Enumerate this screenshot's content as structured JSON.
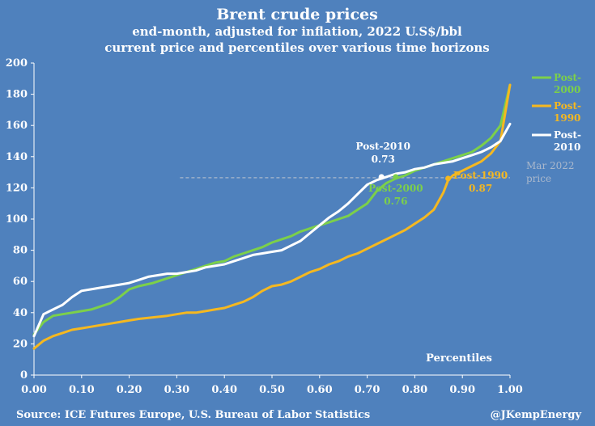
{
  "chart_data": {
    "type": "line",
    "title": "Brent crude prices",
    "subtitle_lines": [
      "end-month, adjusted for inflation, 2022 U.S$/bbl",
      "current price and percentiles over various time horizons"
    ],
    "xlabel": "Percentiles",
    "ylabel": "",
    "xlim": [
      0,
      1
    ],
    "ylim": [
      0,
      200
    ],
    "x_ticks": [
      "0.00",
      "0.10",
      "0.20",
      "0.30",
      "0.40",
      "0.50",
      "0.60",
      "0.70",
      "0.80",
      "0.90",
      "1.00"
    ],
    "y_ticks": [
      "0",
      "20",
      "40",
      "60",
      "80",
      "100",
      "120",
      "140",
      "160",
      "180",
      "200"
    ],
    "grid": false,
    "legend_position": "right",
    "series": [
      {
        "name_lines": [
          "Post-",
          "2000"
        ],
        "color": "#7cd04a",
        "points": [
          [
            0.0,
            26
          ],
          [
            0.02,
            34
          ],
          [
            0.04,
            38
          ],
          [
            0.06,
            39
          ],
          [
            0.08,
            40
          ],
          [
            0.1,
            41
          ],
          [
            0.12,
            42
          ],
          [
            0.14,
            44
          ],
          [
            0.16,
            46
          ],
          [
            0.18,
            50
          ],
          [
            0.2,
            55
          ],
          [
            0.22,
            57
          ],
          [
            0.25,
            59
          ],
          [
            0.28,
            62
          ],
          [
            0.3,
            64
          ],
          [
            0.32,
            66
          ],
          [
            0.34,
            68
          ],
          [
            0.36,
            70
          ],
          [
            0.38,
            72
          ],
          [
            0.4,
            73
          ],
          [
            0.42,
            76
          ],
          [
            0.44,
            78
          ],
          [
            0.46,
            80
          ],
          [
            0.48,
            82
          ],
          [
            0.5,
            85
          ],
          [
            0.52,
            87
          ],
          [
            0.54,
            89
          ],
          [
            0.56,
            92
          ],
          [
            0.58,
            94
          ],
          [
            0.6,
            96
          ],
          [
            0.62,
            98
          ],
          [
            0.64,
            100
          ],
          [
            0.66,
            102
          ],
          [
            0.68,
            106
          ],
          [
            0.7,
            110
          ],
          [
            0.72,
            118
          ],
          [
            0.74,
            123
          ],
          [
            0.76,
            126
          ],
          [
            0.78,
            128
          ],
          [
            0.8,
            131
          ],
          [
            0.82,
            133
          ],
          [
            0.84,
            135
          ],
          [
            0.86,
            137
          ],
          [
            0.88,
            139
          ],
          [
            0.9,
            141
          ],
          [
            0.92,
            143
          ],
          [
            0.94,
            147
          ],
          [
            0.96,
            152
          ],
          [
            0.98,
            160
          ],
          [
            1.0,
            186
          ]
        ]
      },
      {
        "name_lines": [
          "Post-",
          "1990"
        ],
        "color": "#f5b820",
        "points": [
          [
            0.0,
            17
          ],
          [
            0.02,
            22
          ],
          [
            0.04,
            25
          ],
          [
            0.06,
            27
          ],
          [
            0.08,
            29
          ],
          [
            0.1,
            30
          ],
          [
            0.12,
            31
          ],
          [
            0.14,
            32
          ],
          [
            0.16,
            33
          ],
          [
            0.18,
            34
          ],
          [
            0.2,
            35
          ],
          [
            0.22,
            36
          ],
          [
            0.25,
            37
          ],
          [
            0.28,
            38
          ],
          [
            0.3,
            39
          ],
          [
            0.32,
            40
          ],
          [
            0.34,
            40
          ],
          [
            0.36,
            41
          ],
          [
            0.38,
            42
          ],
          [
            0.4,
            43
          ],
          [
            0.42,
            45
          ],
          [
            0.44,
            47
          ],
          [
            0.46,
            50
          ],
          [
            0.48,
            54
          ],
          [
            0.5,
            57
          ],
          [
            0.52,
            58
          ],
          [
            0.54,
            60
          ],
          [
            0.56,
            63
          ],
          [
            0.58,
            66
          ],
          [
            0.6,
            68
          ],
          [
            0.62,
            71
          ],
          [
            0.64,
            73
          ],
          [
            0.66,
            76
          ],
          [
            0.68,
            78
          ],
          [
            0.7,
            81
          ],
          [
            0.72,
            84
          ],
          [
            0.74,
            87
          ],
          [
            0.76,
            90
          ],
          [
            0.78,
            93
          ],
          [
            0.8,
            97
          ],
          [
            0.82,
            101
          ],
          [
            0.84,
            106
          ],
          [
            0.86,
            117
          ],
          [
            0.87,
            125
          ],
          [
            0.88,
            128
          ],
          [
            0.9,
            131
          ],
          [
            0.92,
            134
          ],
          [
            0.94,
            137
          ],
          [
            0.96,
            142
          ],
          [
            0.98,
            150
          ],
          [
            1.0,
            186
          ]
        ]
      },
      {
        "name_lines": [
          "Post-",
          "2010"
        ],
        "color": "#ffffff",
        "points": [
          [
            0.0,
            25
          ],
          [
            0.02,
            39
          ],
          [
            0.04,
            42
          ],
          [
            0.06,
            45
          ],
          [
            0.08,
            50
          ],
          [
            0.1,
            54
          ],
          [
            0.12,
            55
          ],
          [
            0.14,
            56
          ],
          [
            0.16,
            57
          ],
          [
            0.18,
            58
          ],
          [
            0.2,
            59
          ],
          [
            0.22,
            61
          ],
          [
            0.24,
            63
          ],
          [
            0.26,
            64
          ],
          [
            0.28,
            65
          ],
          [
            0.3,
            65
          ],
          [
            0.32,
            66
          ],
          [
            0.34,
            67
          ],
          [
            0.36,
            69
          ],
          [
            0.38,
            70
          ],
          [
            0.4,
            71
          ],
          [
            0.42,
            73
          ],
          [
            0.44,
            75
          ],
          [
            0.46,
            77
          ],
          [
            0.48,
            78
          ],
          [
            0.5,
            79
          ],
          [
            0.52,
            80
          ],
          [
            0.54,
            83
          ],
          [
            0.56,
            86
          ],
          [
            0.58,
            91
          ],
          [
            0.6,
            96
          ],
          [
            0.62,
            101
          ],
          [
            0.64,
            105
          ],
          [
            0.66,
            110
          ],
          [
            0.68,
            116
          ],
          [
            0.7,
            122
          ],
          [
            0.72,
            125
          ],
          [
            0.74,
            127
          ],
          [
            0.76,
            129
          ],
          [
            0.78,
            130
          ],
          [
            0.8,
            132
          ],
          [
            0.82,
            133
          ],
          [
            0.84,
            135
          ],
          [
            0.86,
            136
          ],
          [
            0.88,
            137
          ],
          [
            0.9,
            139
          ],
          [
            0.92,
            141
          ],
          [
            0.94,
            143
          ],
          [
            0.96,
            146
          ],
          [
            0.98,
            150
          ],
          [
            1.0,
            161
          ]
        ]
      }
    ],
    "reference_line": {
      "value": 126.5,
      "xmin": 0.3,
      "xmax": 1.0,
      "label_lines": [
        "Mar 2022",
        "price"
      ],
      "color": "#aab8cc"
    },
    "annotations": [
      {
        "lines": [
          "Post-2010",
          "0.73"
        ],
        "x": 0.73,
        "y": 127,
        "color": "#ffffff"
      },
      {
        "lines": [
          "Post-2000",
          "0.76"
        ],
        "x": 0.76,
        "y": 127,
        "color": "#7cd04a"
      },
      {
        "lines": [
          "Post-1990",
          "0.87"
        ],
        "x": 0.87,
        "y": 126,
        "color": "#f5b820"
      }
    ]
  },
  "footer": {
    "source": "Source: ICE Futures Europe, U.S. Bureau of Labor Statistics",
    "handle": "@JKempEnergy"
  }
}
